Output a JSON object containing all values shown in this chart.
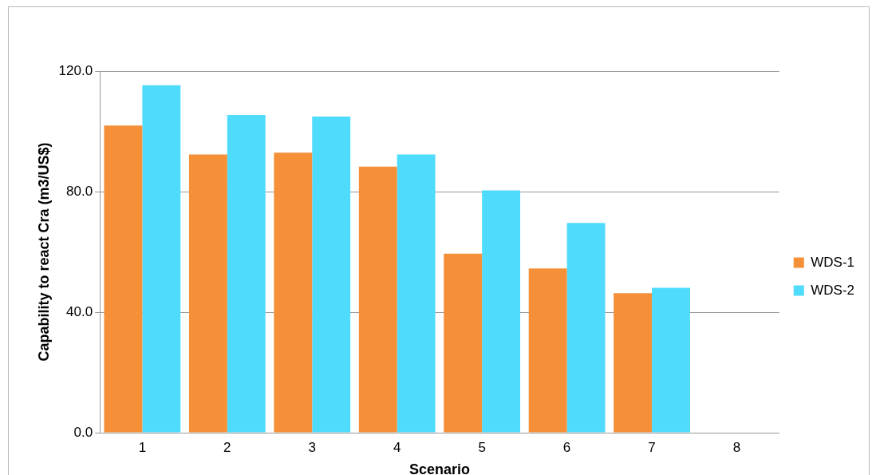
{
  "chart_data": {
    "type": "bar",
    "xlabel": "Scenario",
    "ylabel": "Capability to react Cra (m3/US$)",
    "categories": [
      "1",
      "2",
      "3",
      "4",
      "5",
      "6",
      "7",
      "8"
    ],
    "series": [
      {
        "name": "WDS-1",
        "color": "#f59038",
        "values": [
          101.9,
          92.3,
          92.9,
          88.3,
          59.4,
          54.5,
          46.3,
          null
        ]
      },
      {
        "name": "WDS-2",
        "color": "#4fdcfc",
        "values": [
          115.3,
          105.4,
          104.9,
          92.3,
          80.4,
          69.6,
          48.1,
          null
        ]
      }
    ],
    "ylim": [
      0,
      120
    ],
    "yticks": [
      {
        "value": 0,
        "label": "0.0"
      },
      {
        "value": 40,
        "label": "40.0"
      },
      {
        "value": 80,
        "label": "80.0"
      },
      {
        "value": 120,
        "label": "120.0"
      }
    ],
    "grid": "y",
    "legend": "right"
  }
}
